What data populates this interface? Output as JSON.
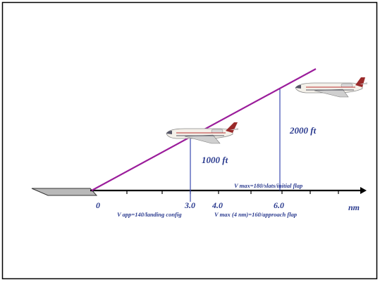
{
  "axis": {
    "origin_label": "0",
    "unit": "nm",
    "ticks": [
      {
        "label": "3.0"
      },
      {
        "label": "4.0"
      },
      {
        "label": "6.0"
      }
    ]
  },
  "altitudes": {
    "low": "1000 ft",
    "high": "2000 ft"
  },
  "speed_notes": {
    "vmax_180": "V max=180/slats/initial flap",
    "vapp_140": "V app=140/landing config",
    "vmax_160": "V max (4 nm)=160/approach flap"
  },
  "colors": {
    "glide_path": "#9b1d9b",
    "labels": "#2b3b8f",
    "vertical_lines": "#3a4ab0",
    "axis": "#000000"
  }
}
